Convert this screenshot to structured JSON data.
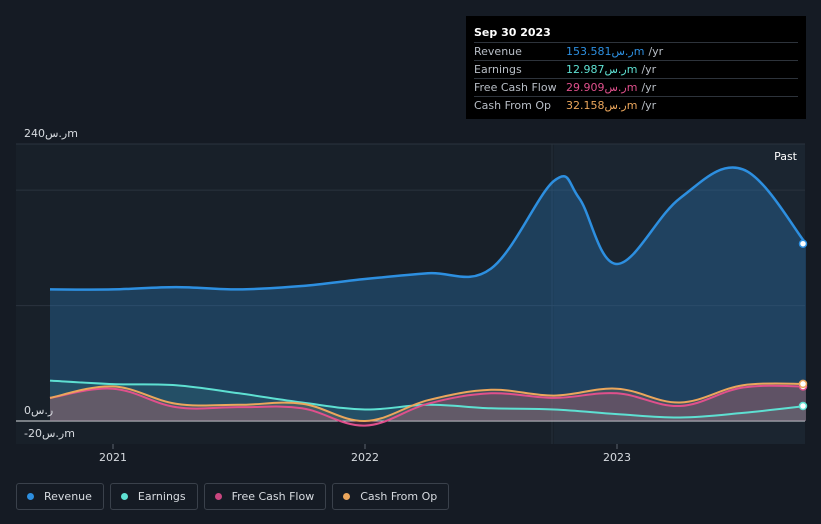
{
  "tooltip": {
    "date": "Sep 30 2023",
    "rows": [
      {
        "label": "Revenue",
        "value": "153.581ر.سm",
        "unit": "/yr",
        "color": "#2d8fe0"
      },
      {
        "label": "Earnings",
        "value": "12.987ر.سm",
        "unit": "/yr",
        "color": "#5ee0d2"
      },
      {
        "label": "Free Cash Flow",
        "value": "29.909ر.سm",
        "unit": "/yr",
        "color": "#e0508c"
      },
      {
        "label": "Cash From Op",
        "value": "32.158ر.سm",
        "unit": "/yr",
        "color": "#eba65c"
      }
    ]
  },
  "axis": {
    "y_top_label": "240ر.سm",
    "y_zero_label": "0ر.س",
    "y_neg_label": "-20ر.سm",
    "past_label": "Past"
  },
  "legend": [
    {
      "label": "Revenue",
      "color": "#2d8fe0"
    },
    {
      "label": "Earnings",
      "color": "#5ee0d2"
    },
    {
      "label": "Free Cash Flow",
      "color": "#c9467f"
    },
    {
      "label": "Cash From Op",
      "color": "#eba65c"
    }
  ],
  "chart_data": {
    "type": "area",
    "unit": "SAR m",
    "ylim": [
      -20,
      240
    ],
    "x_ticks": [
      "2021",
      "2022",
      "2023"
    ],
    "past_start": 2022.75,
    "series": [
      {
        "name": "Revenue",
        "color": "#2d8fe0",
        "points": [
          [
            2020.75,
            114
          ],
          [
            2021.0,
            114
          ],
          [
            2021.25,
            116
          ],
          [
            2021.5,
            114
          ],
          [
            2021.75,
            117
          ],
          [
            2022.0,
            123
          ],
          [
            2022.25,
            128
          ],
          [
            2022.5,
            132
          ],
          [
            2022.75,
            208
          ],
          [
            2022.85,
            193
          ],
          [
            2023.0,
            136
          ],
          [
            2023.25,
            193
          ],
          [
            2023.5,
            218
          ],
          [
            2023.75,
            153.581
          ]
        ]
      },
      {
        "name": "Earnings",
        "color": "#5ee0d2",
        "points": [
          [
            2020.75,
            35
          ],
          [
            2021.0,
            32
          ],
          [
            2021.25,
            31
          ],
          [
            2021.5,
            24
          ],
          [
            2021.75,
            16
          ],
          [
            2022.0,
            10
          ],
          [
            2022.25,
            14
          ],
          [
            2022.5,
            11
          ],
          [
            2022.75,
            10
          ],
          [
            2023.0,
            6
          ],
          [
            2023.25,
            3
          ],
          [
            2023.5,
            7
          ],
          [
            2023.75,
            12.987
          ]
        ]
      },
      {
        "name": "Free Cash Flow",
        "color": "#e0508c",
        "points": [
          [
            2020.75,
            20
          ],
          [
            2021.0,
            28
          ],
          [
            2021.25,
            12
          ],
          [
            2021.5,
            12
          ],
          [
            2021.75,
            11
          ],
          [
            2022.0,
            -4
          ],
          [
            2022.25,
            15
          ],
          [
            2022.5,
            24
          ],
          [
            2022.75,
            20
          ],
          [
            2023.0,
            24
          ],
          [
            2023.25,
            13
          ],
          [
            2023.5,
            29
          ],
          [
            2023.75,
            29.909
          ]
        ]
      },
      {
        "name": "Cash From Op",
        "color": "#eba65c",
        "points": [
          [
            2020.75,
            20
          ],
          [
            2021.0,
            30
          ],
          [
            2021.25,
            15
          ],
          [
            2021.5,
            14
          ],
          [
            2021.75,
            15
          ],
          [
            2022.0,
            0
          ],
          [
            2022.25,
            18
          ],
          [
            2022.5,
            27
          ],
          [
            2022.75,
            22
          ],
          [
            2023.0,
            28
          ],
          [
            2023.25,
            16
          ],
          [
            2023.5,
            31
          ],
          [
            2023.75,
            32.158
          ]
        ]
      }
    ]
  }
}
